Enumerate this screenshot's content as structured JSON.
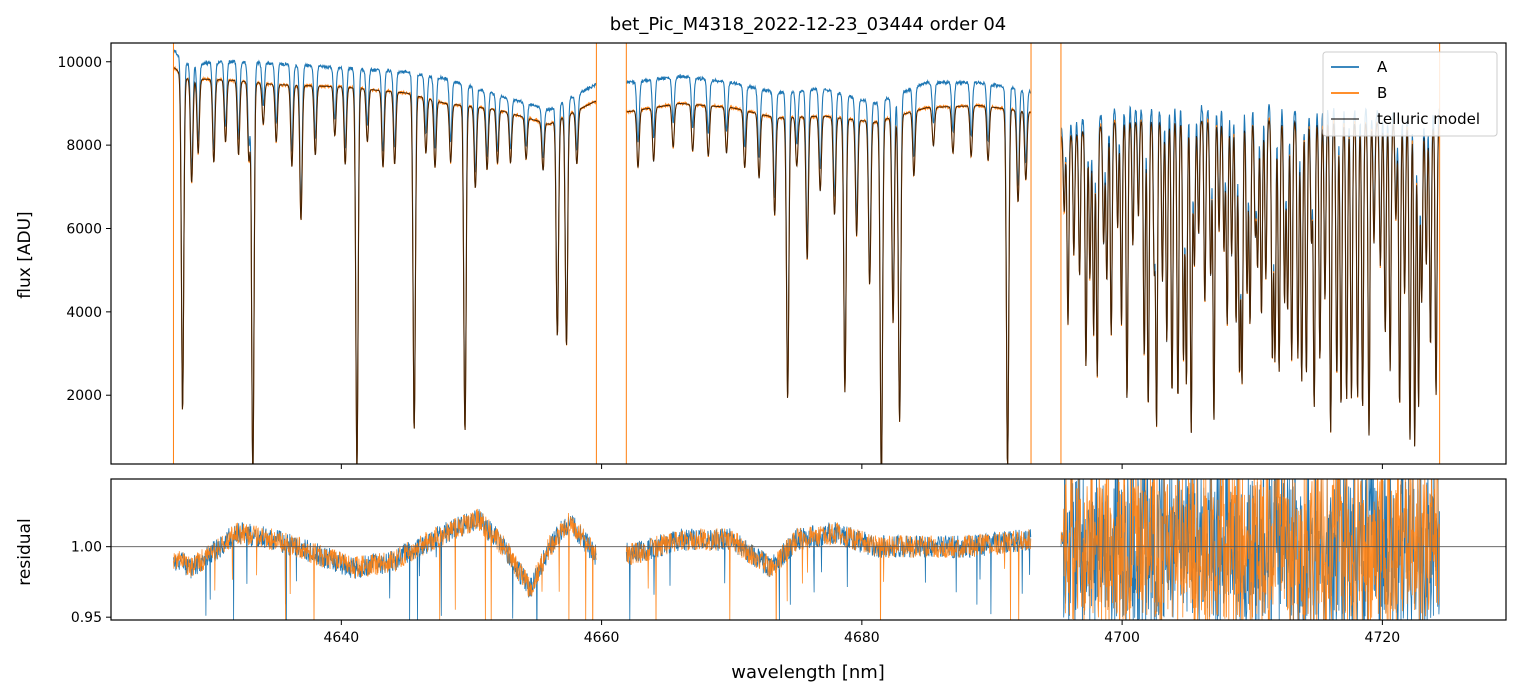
{
  "chart_data": [
    {
      "type": "line",
      "title": "bet_Pic_M4318_2022-12-23_03444  order 04",
      "xlabel": "",
      "ylabel": "flux [ADU]",
      "xlim": [
        4622.3,
        4729.5
      ],
      "ylim": [
        350,
        10450
      ],
      "yticks": [
        2000,
        4000,
        6000,
        8000,
        10000
      ],
      "yticklabels": [
        "2000",
        "4000",
        "6000",
        "8000",
        "10000"
      ],
      "legend": {
        "position": "top-right",
        "entries": [
          {
            "label": "A",
            "color": "#1f77b4"
          },
          {
            "label": "B",
            "color": "#ff7f0e"
          },
          {
            "label": "telluric model",
            "color": "#000000"
          }
        ]
      },
      "segments": [
        [
          4627.1,
          4659.6
        ],
        [
          4661.9,
          4693.0
        ],
        [
          4695.3,
          4724.4
        ]
      ],
      "continuum": [
        {
          "x": 4627.2,
          "A": 10250,
          "B": 9850
        },
        {
          "x": 4628.0,
          "A": 9950,
          "B": 9600
        },
        {
          "x": 4632.0,
          "A": 10000,
          "B": 9550
        },
        {
          "x": 4635.0,
          "A": 9950,
          "B": 9450
        },
        {
          "x": 4640.0,
          "A": 9850,
          "B": 9400
        },
        {
          "x": 4645.0,
          "A": 9750,
          "B": 9250
        },
        {
          "x": 4648.0,
          "A": 9600,
          "B": 9000
        },
        {
          "x": 4652.0,
          "A": 9200,
          "B": 8850
        },
        {
          "x": 4656.0,
          "A": 8850,
          "B": 8500
        },
        {
          "x": 4659.5,
          "A": 9450,
          "B": 9050
        },
        {
          "x": 4662.0,
          "A": 9500,
          "B": 8800
        },
        {
          "x": 4666.0,
          "A": 9650,
          "B": 9000
        },
        {
          "x": 4670.0,
          "A": 9500,
          "B": 8900
        },
        {
          "x": 4673.5,
          "A": 9250,
          "B": 8650
        },
        {
          "x": 4677.0,
          "A": 9350,
          "B": 8700
        },
        {
          "x": 4681.0,
          "A": 9000,
          "B": 8550
        },
        {
          "x": 4685.0,
          "A": 9500,
          "B": 8900
        },
        {
          "x": 4689.0,
          "A": 9500,
          "B": 8950
        },
        {
          "x": 4692.9,
          "A": 9300,
          "B": 8800
        },
        {
          "x": 4695.4,
          "A": 8400,
          "B": 8200
        },
        {
          "x": 4700.0,
          "A": 8900,
          "B": 8600
        },
        {
          "x": 4712.0,
          "A": 8900,
          "B": 8600
        },
        {
          "x": 4724.3,
          "A": 8800,
          "B": 8500
        }
      ],
      "absorption_lines": [
        {
          "x": 4627.8,
          "depth": 8000
        },
        {
          "x": 4628.5,
          "depth": 2500
        },
        {
          "x": 4629.0,
          "depth": 1800
        },
        {
          "x": 4630.2,
          "depth": 2000
        },
        {
          "x": 4631.1,
          "depth": 1500
        },
        {
          "x": 4632.1,
          "depth": 1800
        },
        {
          "x": 4632.9,
          "depth": 1900
        },
        {
          "x": 4633.2,
          "depth": 9500
        },
        {
          "x": 4634.0,
          "depth": 1000
        },
        {
          "x": 4635.0,
          "depth": 1400
        },
        {
          "x": 4636.2,
          "depth": 2000
        },
        {
          "x": 4636.9,
          "depth": 3300
        },
        {
          "x": 4638.0,
          "depth": 1700
        },
        {
          "x": 4639.5,
          "depth": 1200
        },
        {
          "x": 4640.3,
          "depth": 1900
        },
        {
          "x": 4641.2,
          "depth": 9400
        },
        {
          "x": 4642.0,
          "depth": 1300
        },
        {
          "x": 4643.2,
          "depth": 1900
        },
        {
          "x": 4644.1,
          "depth": 1800
        },
        {
          "x": 4645.6,
          "depth": 8400
        },
        {
          "x": 4646.5,
          "depth": 1400
        },
        {
          "x": 4647.2,
          "depth": 1700
        },
        {
          "x": 4648.4,
          "depth": 1500
        },
        {
          "x": 4649.5,
          "depth": 8400
        },
        {
          "x": 4650.3,
          "depth": 2100
        },
        {
          "x": 4651.2,
          "depth": 1600
        },
        {
          "x": 4652.0,
          "depth": 1400
        },
        {
          "x": 4653.0,
          "depth": 1300
        },
        {
          "x": 4654.2,
          "depth": 1100
        },
        {
          "x": 4655.5,
          "depth": 1300
        },
        {
          "x": 4656.6,
          "depth": 5800
        },
        {
          "x": 4657.3,
          "depth": 6100
        },
        {
          "x": 4658.1,
          "depth": 1400
        },
        {
          "x": 4662.8,
          "depth": 1500
        },
        {
          "x": 4664.0,
          "depth": 1400
        },
        {
          "x": 4665.5,
          "depth": 1100
        },
        {
          "x": 4667.0,
          "depth": 1200
        },
        {
          "x": 4668.2,
          "depth": 1300
        },
        {
          "x": 4669.6,
          "depth": 1200
        },
        {
          "x": 4671.0,
          "depth": 1500
        },
        {
          "x": 4672.1,
          "depth": 1700
        },
        {
          "x": 4673.3,
          "depth": 2600
        },
        {
          "x": 4674.3,
          "depth": 7500
        },
        {
          "x": 4675.0,
          "depth": 1300
        },
        {
          "x": 4675.8,
          "depth": 3800
        },
        {
          "x": 4676.8,
          "depth": 2000
        },
        {
          "x": 4677.9,
          "depth": 2600
        },
        {
          "x": 4678.7,
          "depth": 7300
        },
        {
          "x": 4679.6,
          "depth": 3100
        },
        {
          "x": 4680.6,
          "depth": 4400
        },
        {
          "x": 4681.5,
          "depth": 9800
        },
        {
          "x": 4682.4,
          "depth": 5500
        },
        {
          "x": 4682.9,
          "depth": 8100
        },
        {
          "x": 4684.0,
          "depth": 1700
        },
        {
          "x": 4685.5,
          "depth": 1000
        },
        {
          "x": 4687.0,
          "depth": 1200
        },
        {
          "x": 4688.4,
          "depth": 1300
        },
        {
          "x": 4689.7,
          "depth": 1400
        },
        {
          "x": 4691.2,
          "depth": 9300
        },
        {
          "x": 4692.0,
          "depth": 2400
        },
        {
          "x": 4692.6,
          "depth": 1800
        }
      ],
      "forest_range": [
        4695.5,
        4724.3
      ]
    },
    {
      "type": "line",
      "title": "",
      "xlabel": "wavelength [nm]",
      "ylabel": "residual",
      "xlim": [
        4622.3,
        4729.5
      ],
      "ylim": [
        0.948,
        1.048
      ],
      "xticks": [
        4640,
        4660,
        4680,
        4700,
        4720
      ],
      "xticklabels": [
        "4640",
        "4660",
        "4680",
        "4700",
        "4720"
      ],
      "yticks": [
        0.95,
        1.0
      ],
      "yticklabels": [
        "0.95",
        "1.00"
      ],
      "reference_line": 1.0,
      "baseline": [
        {
          "x": 4627.5,
          "y": 0.99
        },
        {
          "x": 4628.5,
          "y": 0.985
        },
        {
          "x": 4630.0,
          "y": 0.995
        },
        {
          "x": 4632.0,
          "y": 1.01
        },
        {
          "x": 4635.0,
          "y": 1.005
        },
        {
          "x": 4638.0,
          "y": 0.995
        },
        {
          "x": 4641.0,
          "y": 0.985
        },
        {
          "x": 4644.0,
          "y": 0.99
        },
        {
          "x": 4647.0,
          "y": 1.005
        },
        {
          "x": 4650.5,
          "y": 1.02
        },
        {
          "x": 4652.5,
          "y": 1.0
        },
        {
          "x": 4654.5,
          "y": 0.97
        },
        {
          "x": 4656.0,
          "y": 1.0
        },
        {
          "x": 4657.5,
          "y": 1.018
        },
        {
          "x": 4659.5,
          "y": 0.995
        },
        {
          "x": 4662.5,
          "y": 0.995
        },
        {
          "x": 4666.0,
          "y": 1.005
        },
        {
          "x": 4670.0,
          "y": 1.005
        },
        {
          "x": 4673.0,
          "y": 0.985
        },
        {
          "x": 4675.0,
          "y": 1.005
        },
        {
          "x": 4678.0,
          "y": 1.01
        },
        {
          "x": 4681.0,
          "y": 1.0
        },
        {
          "x": 4684.0,
          "y": 1.0
        },
        {
          "x": 4688.0,
          "y": 1.0
        },
        {
          "x": 4692.9,
          "y": 1.005
        }
      ]
    }
  ]
}
